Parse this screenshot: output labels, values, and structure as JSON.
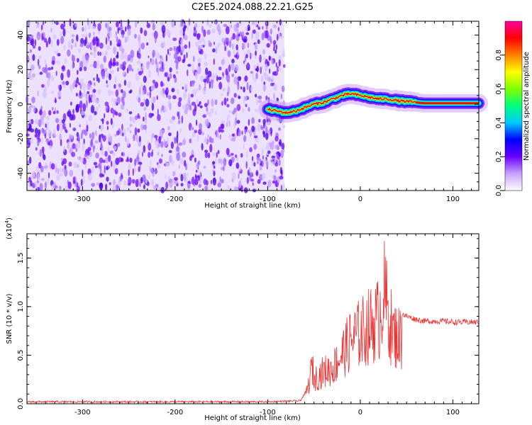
{
  "title": "C2E5.2024.088.22.21.G25",
  "chart_data": [
    {
      "type": "heatmap",
      "xlabel": "Height of straight line (km)",
      "ylabel": "Frequency (Hz)",
      "xlim": [
        -360,
        128
      ],
      "ylim": [
        -50,
        48
      ],
      "xticks": [
        -300,
        -200,
        -100,
        0,
        100
      ],
      "yticks": [
        -40,
        -20,
        0,
        20,
        40
      ],
      "noise_region_x": [
        -360,
        -82
      ],
      "ridge": {
        "x": [
          -100,
          -90,
          -80,
          -70,
          -60,
          -50,
          -40,
          -30,
          -20,
          -10,
          0,
          10,
          20,
          30,
          40,
          50,
          60,
          70,
          80,
          90,
          100,
          110,
          128
        ],
        "y": [
          -3,
          -4,
          -5,
          -4,
          -2,
          0,
          1,
          3,
          5,
          6,
          5,
          4,
          3,
          3,
          2,
          1.5,
          1,
          0.5,
          0.5,
          0.5,
          0.5,
          0.5,
          0.5
        ]
      },
      "colorbar": {
        "label": "Normalized spectral amplitude",
        "ticks": [
          0.0,
          0.2,
          0.4,
          0.6,
          0.8
        ],
        "tick_labels": [
          "0.0",
          "0.2",
          "0.4",
          "0.6",
          "0.8"
        ],
        "range": [
          0,
          1
        ],
        "colormap": [
          "#ffffff",
          "#c8a0ff",
          "#6a00ff",
          "#0000ff",
          "#00c8ff",
          "#00ff80",
          "#80ff00",
          "#ffff00",
          "#ff8000",
          "#ff0000",
          "#ff00a0"
        ]
      }
    },
    {
      "type": "line",
      "xlabel": "Height of straight line (km)",
      "ylabel": "SNR (10 * v/v)",
      "multiplier_label": "(x10",
      "multiplier_exp": "4",
      "multiplier_close": ")",
      "xlim": [
        -360,
        128
      ],
      "ylim": [
        0,
        1.75
      ],
      "xticks": [
        -300,
        -200,
        -100,
        0,
        100
      ],
      "yticks": [
        0.0,
        0.5,
        1.0,
        1.5
      ],
      "ytick_labels": [
        "0.0",
        "0.5",
        "1.0",
        "1.5"
      ],
      "color": "#ee3333",
      "series": [
        {
          "x": [
            -360,
            -300,
            -200,
            -100,
            -65,
            -60,
            -55,
            -52,
            -50,
            -45,
            -40,
            -30,
            -20,
            -10,
            0,
            10,
            20,
            25,
            30,
            35,
            40,
            50,
            60,
            70,
            80,
            90,
            100,
            110,
            128
          ],
          "values": [
            0.02,
            0.02,
            0.02,
            0.02,
            0.03,
            0.1,
            0.3,
            0.55,
            0.35,
            0.4,
            0.45,
            0.5,
            0.7,
            0.9,
            1.0,
            1.1,
            1.2,
            1.6,
            1.3,
            1.0,
            0.95,
            0.9,
            0.87,
            0.85,
            0.85,
            0.85,
            0.84,
            0.84,
            0.84
          ]
        }
      ]
    }
  ]
}
